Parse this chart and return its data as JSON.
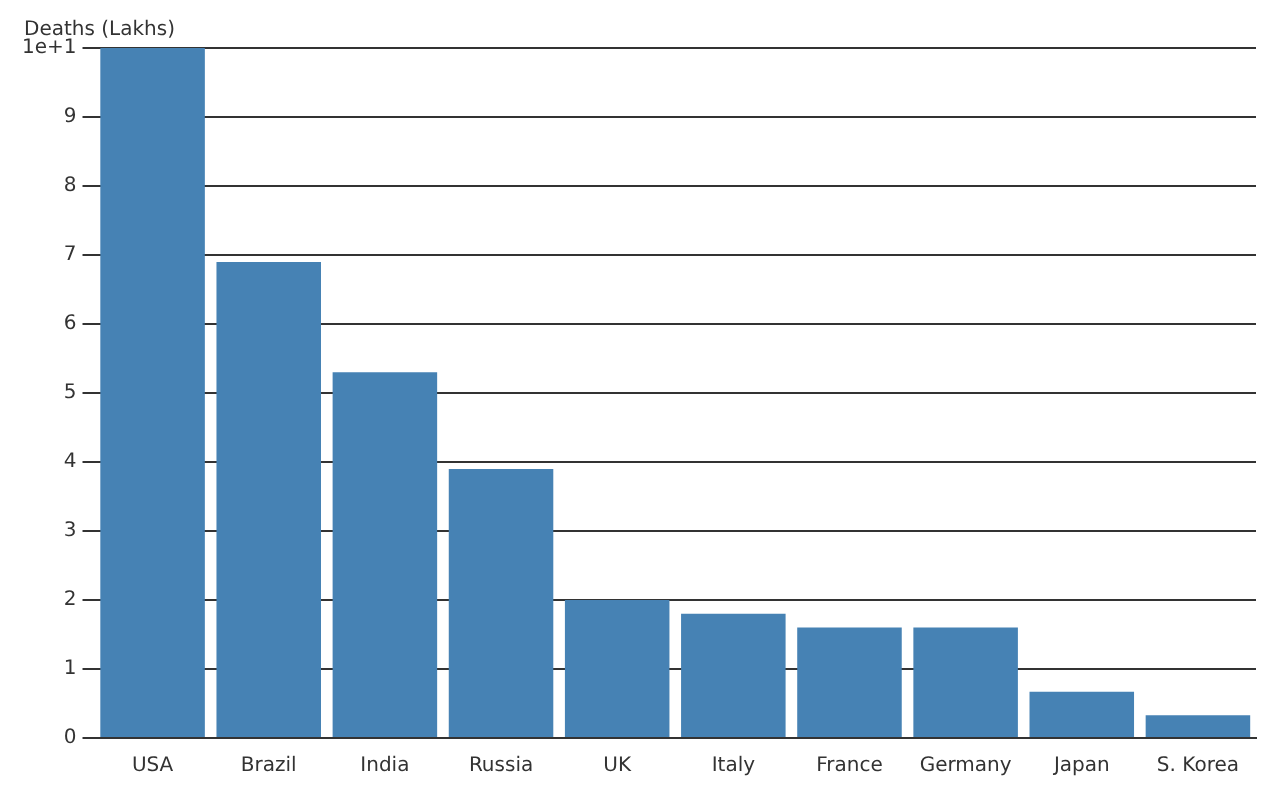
{
  "chart_data": {
    "type": "bar",
    "ylabel": "Deaths (Lakhs)",
    "categories": [
      "USA",
      "Brazil",
      "India",
      "Russia",
      "UK",
      "Italy",
      "France",
      "Germany",
      "Japan",
      "S. Korea"
    ],
    "values": [
      10,
      6.9,
      5.3,
      3.9,
      2.0,
      1.8,
      1.6,
      1.6,
      0.67,
      0.33
    ],
    "color": "#4682b4",
    "ylim": [
      0,
      10
    ],
    "yticks": [
      0,
      1,
      2,
      3,
      4,
      5,
      6,
      7,
      8,
      9,
      {
        "value": 10,
        "label": "1e+1"
      }
    ],
    "grid": "y"
  }
}
